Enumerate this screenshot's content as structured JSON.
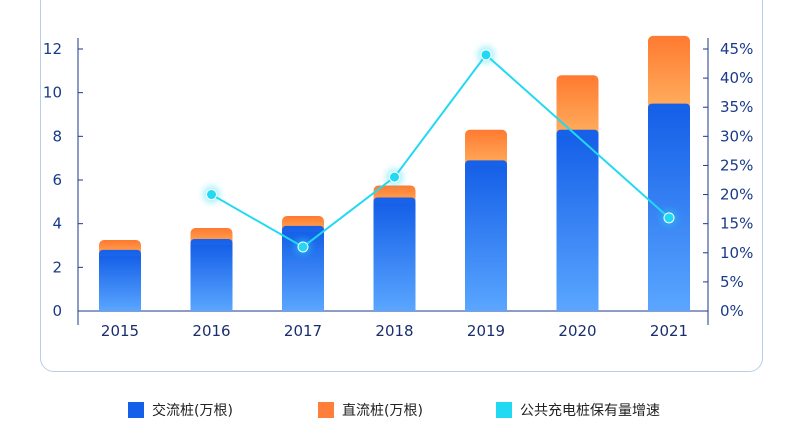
{
  "chart_data": {
    "type": "bar",
    "categories": [
      "2015",
      "2016",
      "2017",
      "2018",
      "2019",
      "2020",
      "2021"
    ],
    "series": [
      {
        "name": "交流桩(万根)",
        "kind": "bar-stack",
        "values": [
          2.8,
          3.3,
          3.9,
          5.2,
          6.9,
          8.3,
          9.5
        ]
      },
      {
        "name": "直流桩(万根)",
        "kind": "bar-stack",
        "values": [
          0.45,
          0.5,
          0.45,
          0.55,
          1.4,
          2.5,
          3.1
        ]
      },
      {
        "name": "公共充电桩保有量增速",
        "kind": "line",
        "axis": "right",
        "values": [
          null,
          0.2,
          0.11,
          0.23,
          0.44,
          null,
          0.16
        ]
      }
    ],
    "y_left": {
      "ylim": [
        0,
        12
      ],
      "ticks": [
        "0",
        "2",
        "4",
        "6",
        "8",
        "10",
        "12"
      ]
    },
    "y_right": {
      "ylim": [
        0,
        0.45
      ],
      "ticks": [
        "0%",
        "5%",
        "10%",
        "15%",
        "20%",
        "25%",
        "30%",
        "35%",
        "40%",
        "45%"
      ]
    },
    "grid": false,
    "legend_position": "bottom",
    "colors": {
      "ac_top": "#1560e8",
      "ac_bottom": "#5aa6ff",
      "dc_top": "#ff7a30",
      "dc_bottom": "#ffb060",
      "line": "#21d9f2",
      "axis": "#1a3a8a"
    }
  },
  "legend": {
    "items": [
      {
        "label": "交流桩(万根)",
        "color": "#1560e8"
      },
      {
        "label": "直流桩(万根)",
        "color": "#ff7f3a"
      },
      {
        "label": "公共充电桩保有量增速",
        "color": "#21d9f2"
      }
    ]
  }
}
